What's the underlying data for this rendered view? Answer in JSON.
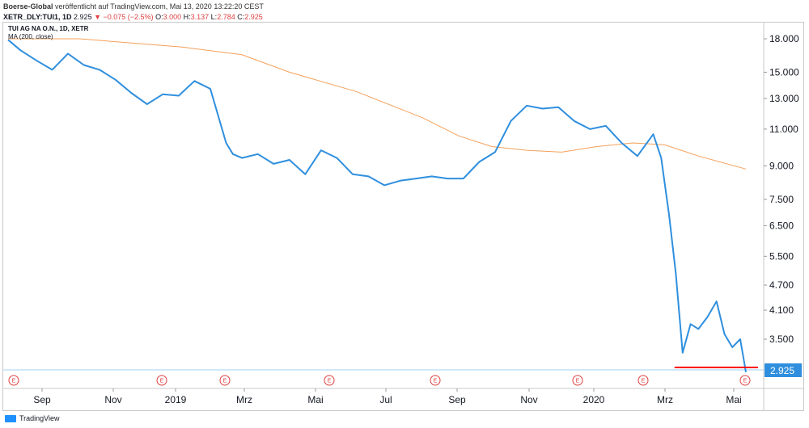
{
  "header": {
    "publisher": "Boerse-Global",
    "published_text": "veröffentlicht auf TradingView.com, Mai 13, 2020 13:22:20 CEST",
    "symbol": "XETR_DLY:TUI1, 1D",
    "last": "2.925",
    "change": "▼ −0.075 (−2.5%)",
    "o_label": "O:",
    "o_value": "3.000",
    "h_label": "H:",
    "h_value": "3.137",
    "l_label": "L:",
    "l_value": "2.784",
    "c_label": "C:",
    "c_value": "2.925"
  },
  "legend": {
    "instrument": "TUI AG NA O.N., 1D, XETR",
    "indicator": "MA (200, close)"
  },
  "brand": {
    "label": "TradingView"
  },
  "colors": {
    "price": "#2f8fde",
    "ma": "#f5a05a",
    "support": "#ff0000",
    "last_badge": "#2f8fde",
    "event": "#e04040"
  },
  "chart_data": {
    "type": "line",
    "scale": "log",
    "x_tick_labels": [
      "Sep",
      "Nov",
      "2019",
      "Mrz",
      "Mai",
      "Jul",
      "Sep",
      "Nov",
      "2020",
      "Mrz",
      "Mai"
    ],
    "y_ticks": [
      "18.000",
      "15.000",
      "13.000",
      "11.000",
      "9.000",
      "7.500",
      "6.500",
      "5.500",
      "4.700",
      "4.100",
      "3.500"
    ],
    "last_value_label": "2.925",
    "series": [
      {
        "name": "TUI AG NA O.N., 1D, XETR",
        "x": [
          "2018-07-30",
          "2018-08-10",
          "2018-08-24",
          "2018-09-07",
          "2018-09-21",
          "2018-10-05",
          "2018-10-19",
          "2018-11-02",
          "2018-11-16",
          "2018-11-30",
          "2018-12-14",
          "2018-12-28",
          "2019-01-11",
          "2019-01-25",
          "2019-02-08",
          "2019-02-14",
          "2019-02-22",
          "2019-03-08",
          "2019-03-22",
          "2019-04-05",
          "2019-04-19",
          "2019-05-03",
          "2019-05-17",
          "2019-05-31",
          "2019-06-14",
          "2019-06-28",
          "2019-07-12",
          "2019-07-26",
          "2019-08-09",
          "2019-08-23",
          "2019-09-06",
          "2019-09-20",
          "2019-10-04",
          "2019-10-18",
          "2019-11-01",
          "2019-11-15",
          "2019-11-29",
          "2019-12-13",
          "2019-12-27",
          "2020-01-10",
          "2020-01-24",
          "2020-02-07",
          "2020-02-21",
          "2020-02-28",
          "2020-03-06",
          "2020-03-12",
          "2020-03-18",
          "2020-03-25",
          "2020-04-01",
          "2020-04-09",
          "2020-04-17",
          "2020-04-24",
          "2020-05-01",
          "2020-05-08",
          "2020-05-13"
        ],
        "values": [
          17.9,
          16.9,
          16.0,
          15.2,
          16.6,
          15.6,
          15.2,
          14.4,
          13.4,
          12.6,
          13.3,
          13.2,
          14.3,
          13.7,
          10.2,
          9.6,
          9.4,
          9.6,
          9.1,
          9.3,
          8.6,
          9.8,
          9.4,
          8.6,
          8.5,
          8.1,
          8.3,
          8.4,
          8.5,
          8.4,
          8.4,
          9.2,
          9.7,
          11.5,
          12.5,
          12.3,
          12.4,
          11.5,
          11.0,
          11.2,
          10.2,
          9.5,
          10.7,
          9.4,
          6.9,
          5.0,
          3.25,
          3.8,
          3.7,
          3.95,
          4.3,
          3.6,
          3.35,
          3.5,
          2.925
        ]
      },
      {
        "name": "MA (200, close)",
        "x": [
          "2018-07-30",
          "2018-10-01",
          "2018-12-31",
          "2019-02-22",
          "2019-04-05",
          "2019-06-03",
          "2019-08-01",
          "2019-09-02",
          "2019-10-01",
          "2019-11-01",
          "2019-12-02",
          "2020-01-02",
          "2020-02-03",
          "2020-03-02",
          "2020-04-01",
          "2020-05-13"
        ],
        "values": [
          18.0,
          18.0,
          17.2,
          16.5,
          15.0,
          13.5,
          11.7,
          10.6,
          10.0,
          9.8,
          9.7,
          10.0,
          10.2,
          10.1,
          9.5,
          8.85
        ]
      }
    ],
    "annotations": [
      {
        "type": "horizontal_line",
        "value": 3.0,
        "from": "2020-03-18",
        "to": "2020-05-13"
      }
    ],
    "event_markers": [
      "E",
      "E",
      "E",
      "E",
      "E",
      "E",
      "E",
      "E"
    ]
  }
}
